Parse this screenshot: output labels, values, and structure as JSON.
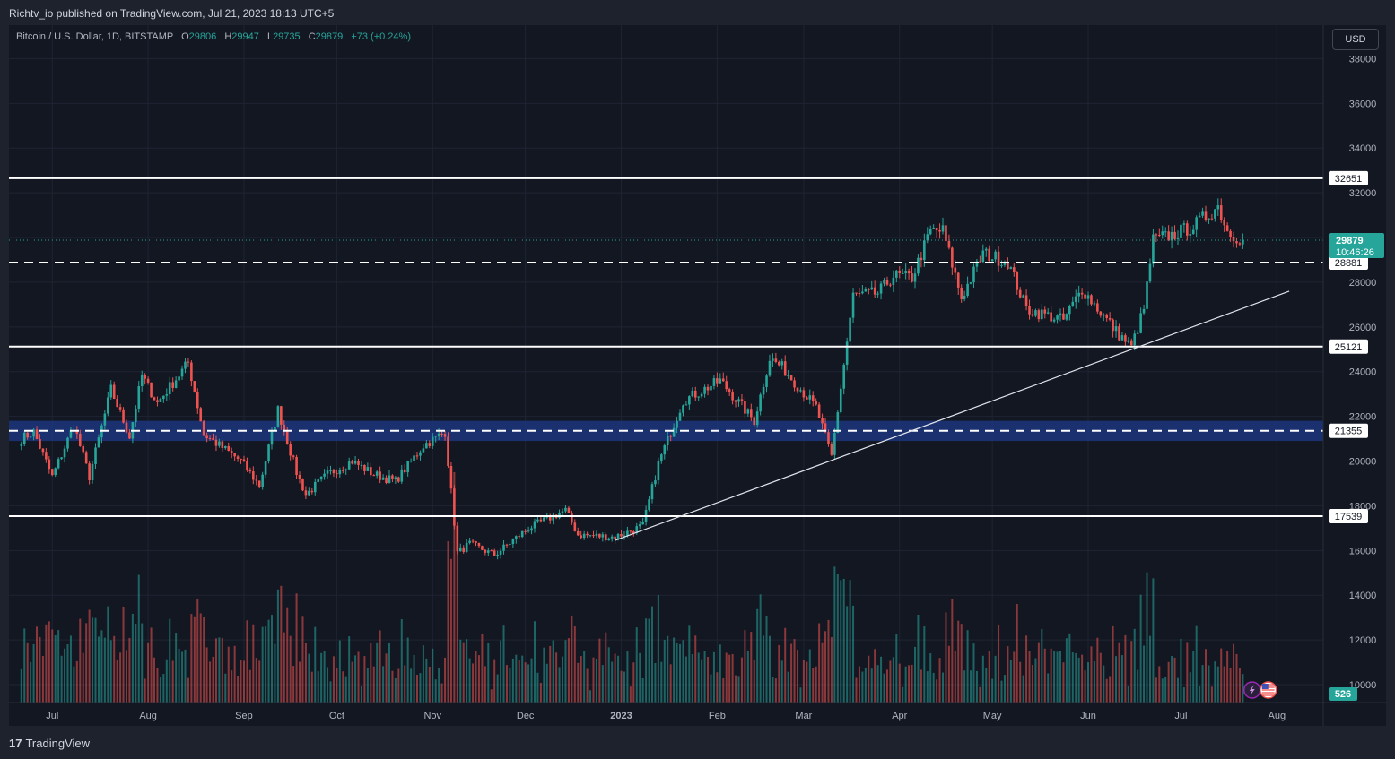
{
  "header": {
    "published": "Richtv_io published on TradingView.com, Jul 21, 2023 18:13 UTC+5"
  },
  "legend": {
    "symbol": "Bitcoin / U.S. Dollar, 1D, BITSTAMP",
    "open_label": "O",
    "open": "29806",
    "high_label": "H",
    "high": "29947",
    "low_label": "L",
    "low": "29735",
    "close_label": "C",
    "close": "29879",
    "change": "+73 (+0.24%)"
  },
  "currency_button": "USD",
  "footer": {
    "brand": "TradingView",
    "logo": "17"
  },
  "colors": {
    "up": "#26a69a",
    "down": "#ef5350",
    "background": "#131722",
    "zone": "#1e3a8a",
    "grid": "#1f2433",
    "axis_text": "#b2b5be"
  },
  "icons": [
    "flash-icon",
    "us-flag-icon"
  ],
  "chart_data": {
    "type": "candlestick",
    "symbol": "BTCUSD",
    "interval": "1D",
    "x_ticks": [
      "Jul",
      "Aug",
      "Sep",
      "Oct",
      "Nov",
      "Dec",
      "2023",
      "Feb",
      "Mar",
      "Apr",
      "May",
      "Jun",
      "Jul",
      "Aug"
    ],
    "y_ticks": [
      10000,
      12000,
      14000,
      16000,
      18000,
      20000,
      22000,
      24000,
      26000,
      28000,
      30000,
      32000,
      34000,
      36000,
      38000
    ],
    "ylim": [
      9200,
      39500
    ],
    "horizontal_levels": [
      {
        "label": "32651",
        "value": 32651,
        "style": "solid"
      },
      {
        "label": "28881",
        "value": 28881,
        "style": "dashed"
      },
      {
        "label": "25121",
        "value": 25121,
        "style": "solid"
      },
      {
        "label": "21355",
        "value": 21355,
        "style": "dashed"
      },
      {
        "label": "17539",
        "value": 17539,
        "style": "solid"
      }
    ],
    "zone": {
      "from": 20900,
      "to": 21800
    },
    "trendline": {
      "start": [
        "2022-12-30",
        16450
      ],
      "end": [
        "2023-08-05",
        27600
      ]
    },
    "last_price": {
      "label": "29879",
      "countdown": "10:46:26",
      "value": 29879
    },
    "volume_label": "526",
    "keypoints": [
      [
        "2022-06-21",
        21000
      ],
      [
        "2022-06-25",
        21300
      ],
      [
        "2022-07-01",
        19300
      ],
      [
        "2022-07-08",
        21600
      ],
      [
        "2022-07-13",
        19300
      ],
      [
        "2022-07-20",
        23200
      ],
      [
        "2022-07-26",
        21100
      ],
      [
        "2022-07-30",
        23800
      ],
      [
        "2022-08-04",
        22600
      ],
      [
        "2022-08-14",
        24400
      ],
      [
        "2022-08-19",
        21200
      ],
      [
        "2022-08-31",
        20000
      ],
      [
        "2022-09-06",
        18900
      ],
      [
        "2022-09-12",
        22300
      ],
      [
        "2022-09-18",
        19500
      ],
      [
        "2022-09-21",
        18500
      ],
      [
        "2022-09-28",
        19400
      ],
      [
        "2022-10-06",
        20000
      ],
      [
        "2022-10-13",
        19400
      ],
      [
        "2022-10-20",
        19100
      ],
      [
        "2022-10-29",
        20700
      ],
      [
        "2022-11-05",
        21300
      ],
      [
        "2022-11-09",
        15900
      ],
      [
        "2022-11-13",
        16300
      ],
      [
        "2022-11-21",
        15800
      ],
      [
        "2022-12-02",
        17000
      ],
      [
        "2022-12-14",
        17800
      ],
      [
        "2022-12-18",
        16700
      ],
      [
        "2022-12-30",
        16600
      ],
      [
        "2023-01-08",
        17100
      ],
      [
        "2023-01-13",
        19900
      ],
      [
        "2023-01-21",
        22700
      ],
      [
        "2023-02-02",
        23600
      ],
      [
        "2023-02-13",
        21800
      ],
      [
        "2023-02-18",
        24600
      ],
      [
        "2023-02-22",
        24200
      ],
      [
        "2023-03-05",
        22400
      ],
      [
        "2023-03-10",
        20200
      ],
      [
        "2023-03-17",
        27400
      ],
      [
        "2023-03-25",
        27500
      ],
      [
        "2023-03-30",
        28300
      ],
      [
        "2023-04-05",
        28200
      ],
      [
        "2023-04-11",
        30300
      ],
      [
        "2023-04-15",
        30300
      ],
      [
        "2023-04-21",
        27300
      ],
      [
        "2023-04-28",
        29300
      ],
      [
        "2023-05-06",
        28900
      ],
      [
        "2023-05-12",
        26800
      ],
      [
        "2023-05-24",
        26300
      ],
      [
        "2023-05-30",
        27700
      ],
      [
        "2023-06-10",
        25800
      ],
      [
        "2023-06-15",
        25100
      ],
      [
        "2023-06-19",
        26800
      ],
      [
        "2023-06-22",
        29900
      ],
      [
        "2023-06-28",
        30100
      ],
      [
        "2023-07-05",
        30500
      ],
      [
        "2023-07-13",
        31400
      ],
      [
        "2023-07-16",
        30300
      ],
      [
        "2023-07-21",
        29879
      ]
    ]
  }
}
